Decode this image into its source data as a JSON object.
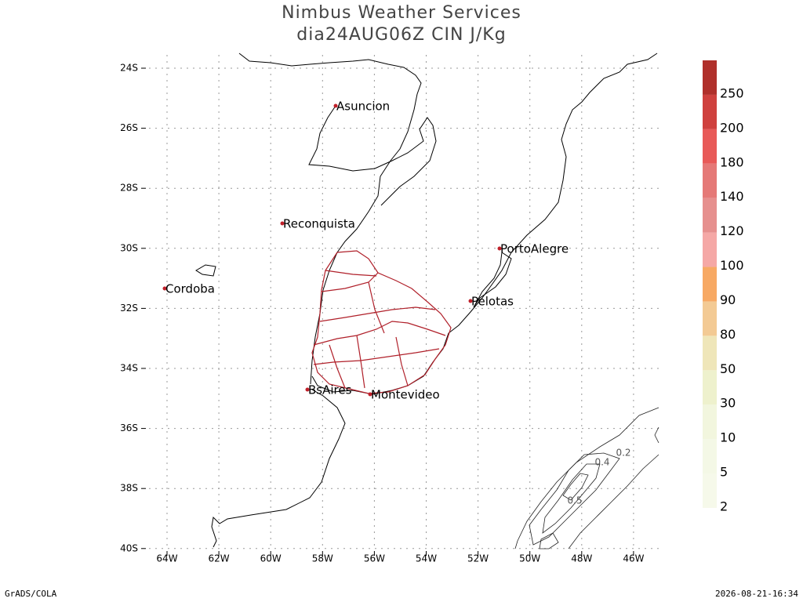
{
  "header": {
    "title": "Nimbus Weather Services",
    "subtitle": "dia24AUG06Z CIN J/Kg"
  },
  "map": {
    "lat_ticks": [
      "24S",
      "26S",
      "28S",
      "30S",
      "32S",
      "34S",
      "36S",
      "38S",
      "40S"
    ],
    "lon_ticks": [
      "64W",
      "62W",
      "60W",
      "58W",
      "56W",
      "54W",
      "52W",
      "50W",
      "48W",
      "46W"
    ],
    "cities": [
      "Asuncion",
      "Reconquista",
      "Cordoba",
      "PortoAlegre",
      "Pelotas",
      "BsAires",
      "Montevideo"
    ],
    "contour_labels": [
      "0.2",
      "0.4",
      "0.5"
    ]
  },
  "colorbar": {
    "levels": [
      {
        "value": 2,
        "color": "#f6f9ea"
      },
      {
        "value": 5,
        "color": "#f4f8e6"
      },
      {
        "value": 10,
        "color": "#f2f6de"
      },
      {
        "value": 30,
        "color": "#eef1cd"
      },
      {
        "value": 50,
        "color": "#efe6b9"
      },
      {
        "value": 80,
        "color": "#f3ca94"
      },
      {
        "value": 90,
        "color": "#f7a964"
      },
      {
        "value": 100,
        "color": "#f5a8a6"
      },
      {
        "value": 120,
        "color": "#e6908e"
      },
      {
        "value": 140,
        "color": "#e57977"
      },
      {
        "value": 180,
        "color": "#e85a58"
      },
      {
        "value": 200,
        "color": "#cf413e"
      },
      {
        "value": 250,
        "color": "#b0302b"
      }
    ]
  },
  "footer": {
    "left": "GrADS/COLA",
    "right": "2026-08-21-16:34"
  }
}
